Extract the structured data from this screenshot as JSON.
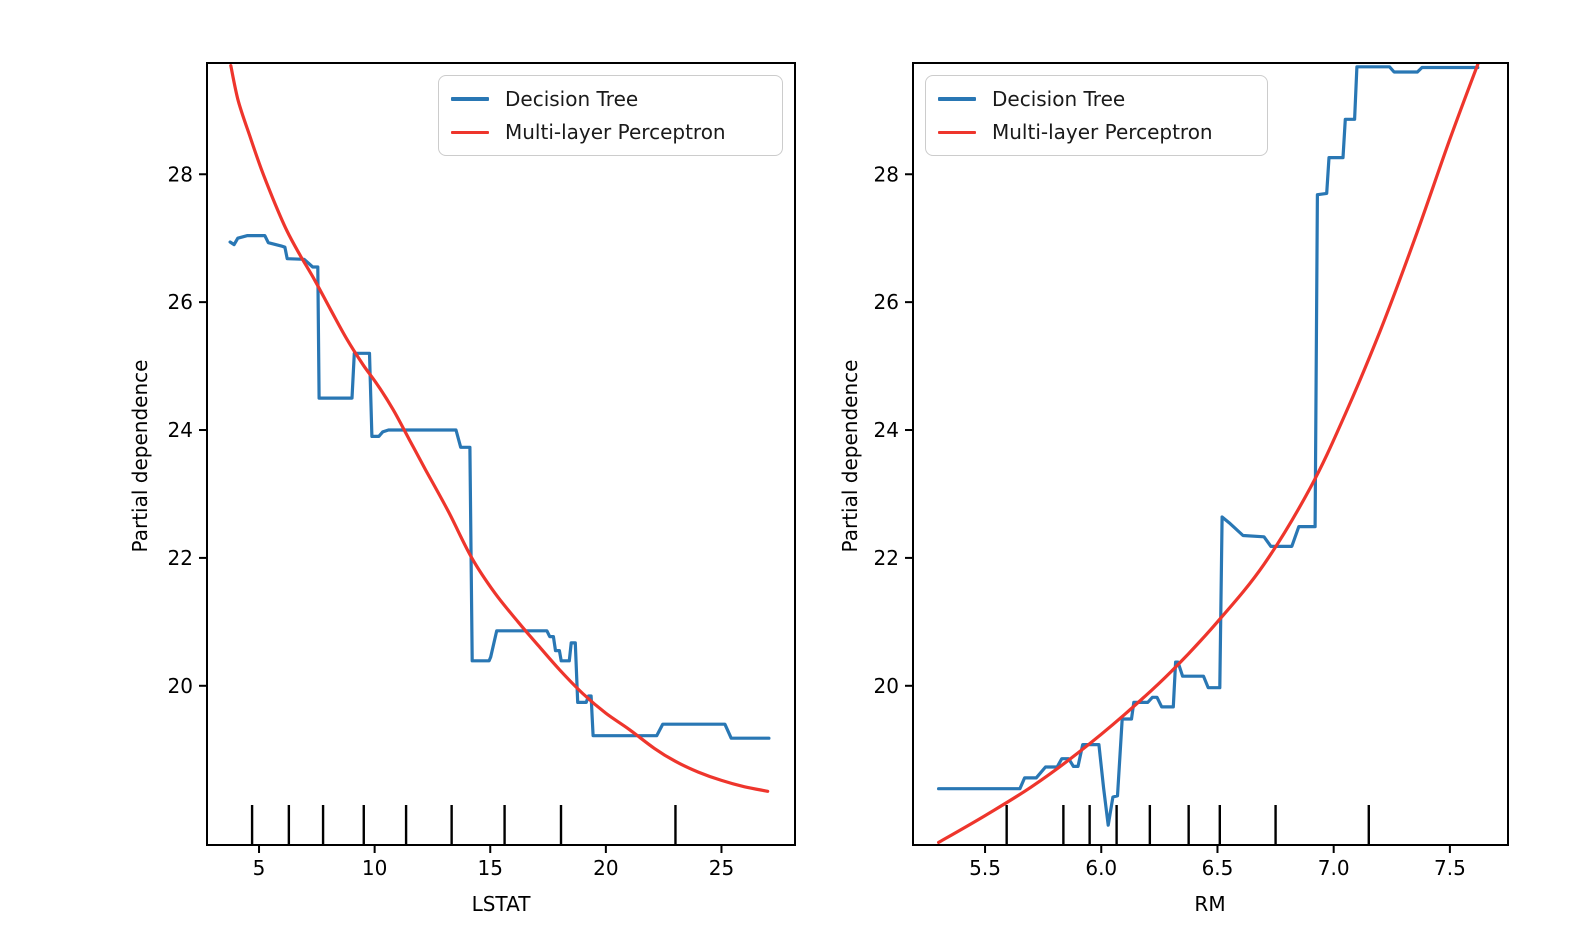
{
  "figure": {
    "background": "#ffffff",
    "spine_color": "#000000",
    "rug_color": "#000000"
  },
  "chart_data": [
    {
      "type": "line",
      "xlabel": "LSTAT",
      "ylabel": "Partial dependence",
      "xlim": [
        2.75,
        28.18
      ],
      "ylim": [
        17.51,
        29.74
      ],
      "grid": false,
      "legend_position": "upper right",
      "xticks": {
        "values": [
          5,
          10,
          15,
          20,
          25
        ],
        "labels": [
          "5",
          "10",
          "15",
          "20",
          "25"
        ]
      },
      "yticks": {
        "values": [
          20,
          22,
          24,
          26,
          28
        ],
        "labels": [
          "20",
          "22",
          "24",
          "26",
          "28"
        ]
      },
      "rug_x": [
        4.7,
        6.29,
        7.77,
        9.53,
        11.36,
        13.33,
        15.62,
        18.06,
        23.01
      ],
      "series": [
        {
          "name": "Decision Tree",
          "color": "#2977b4",
          "smooth": false,
          "points": [
            [
              3.75,
              26.94
            ],
            [
              3.92,
              26.9
            ],
            [
              4.08,
              27.0
            ],
            [
              4.5,
              27.04
            ],
            [
              5.25,
              27.04
            ],
            [
              5.4,
              26.93
            ],
            [
              5.95,
              26.88
            ],
            [
              6.12,
              26.86
            ],
            [
              6.22,
              26.68
            ],
            [
              6.95,
              26.67
            ],
            [
              7.32,
              26.55
            ],
            [
              7.54,
              26.55
            ],
            [
              7.6,
              24.5
            ],
            [
              9.02,
              24.5
            ],
            [
              9.12,
              25.2
            ],
            [
              9.78,
              25.2
            ],
            [
              9.88,
              23.9
            ],
            [
              10.18,
              23.9
            ],
            [
              10.35,
              23.97
            ],
            [
              10.6,
              24.0
            ],
            [
              13.52,
              24.0
            ],
            [
              13.72,
              23.73
            ],
            [
              14.12,
              23.73
            ],
            [
              14.22,
              20.39
            ],
            [
              14.95,
              20.39
            ],
            [
              15.02,
              20.45
            ],
            [
              15.28,
              20.86
            ],
            [
              17.45,
              20.86
            ],
            [
              17.57,
              20.77
            ],
            [
              17.73,
              20.77
            ],
            [
              17.82,
              20.55
            ],
            [
              17.99,
              20.55
            ],
            [
              18.07,
              20.39
            ],
            [
              18.42,
              20.39
            ],
            [
              18.5,
              20.67
            ],
            [
              18.68,
              20.67
            ],
            [
              18.78,
              19.74
            ],
            [
              19.15,
              19.74
            ],
            [
              19.25,
              19.84
            ],
            [
              19.36,
              19.84
            ],
            [
              19.45,
              19.22
            ],
            [
              22.2,
              19.22
            ],
            [
              22.46,
              19.4
            ],
            [
              25.15,
              19.4
            ],
            [
              25.42,
              19.18
            ],
            [
              27.05,
              19.18
            ]
          ]
        },
        {
          "name": "Multi-layer Perceptron",
          "color": "#ee352c",
          "smooth": true,
          "points": [
            [
              3.78,
              29.7
            ],
            [
              4.1,
              29.15
            ],
            [
              4.6,
              28.6
            ],
            [
              5.1,
              28.08
            ],
            [
              5.6,
              27.62
            ],
            [
              6.2,
              27.12
            ],
            [
              6.8,
              26.72
            ],
            [
              7.4,
              26.35
            ],
            [
              8.1,
              25.88
            ],
            [
              8.8,
              25.42
            ],
            [
              9.5,
              25.02
            ],
            [
              10.1,
              24.72
            ],
            [
              10.8,
              24.32
            ],
            [
              11.5,
              23.85
            ],
            [
              12.2,
              23.38
            ],
            [
              13.2,
              22.72
            ],
            [
              14.2,
              22.0
            ],
            [
              15.2,
              21.45
            ],
            [
              16.2,
              21.0
            ],
            [
              17.1,
              20.62
            ],
            [
              18.0,
              20.25
            ],
            [
              19.0,
              19.88
            ],
            [
              20.0,
              19.57
            ],
            [
              21.0,
              19.32
            ],
            [
              22.1,
              19.02
            ],
            [
              23.0,
              18.82
            ],
            [
              24.0,
              18.65
            ],
            [
              25.0,
              18.52
            ],
            [
              26.0,
              18.42
            ],
            [
              27.0,
              18.35
            ]
          ]
        }
      ]
    },
    {
      "type": "line",
      "xlabel": "RM",
      "ylabel": "Partial dependence",
      "xlim": [
        5.19,
        7.75
      ],
      "ylim": [
        17.51,
        29.74
      ],
      "grid": false,
      "legend_position": "upper left",
      "xticks": {
        "values": [
          5.5,
          6.0,
          6.5,
          7.0,
          7.5
        ],
        "labels": [
          "5.5",
          "6.0",
          "6.5",
          "7.0",
          "7.5"
        ]
      },
      "yticks": {
        "values": [
          20,
          22,
          24,
          26,
          28
        ],
        "labels": [
          "20",
          "22",
          "24",
          "26",
          "28"
        ]
      },
      "rug_x": [
        5.593,
        5.837,
        5.95,
        6.066,
        6.209,
        6.376,
        6.51,
        6.75,
        7.151
      ],
      "series": [
        {
          "name": "Decision Tree",
          "color": "#2977b4",
          "smooth": false,
          "points": [
            [
              5.3,
              18.39
            ],
            [
              5.65,
              18.39
            ],
            [
              5.67,
              18.56
            ],
            [
              5.72,
              18.56
            ],
            [
              5.76,
              18.73
            ],
            [
              5.81,
              18.73
            ],
            [
              5.83,
              18.86
            ],
            [
              5.86,
              18.86
            ],
            [
              5.88,
              18.74
            ],
            [
              5.9,
              18.74
            ],
            [
              5.92,
              19.08
            ],
            [
              5.99,
              19.08
            ],
            [
              6.01,
              18.4
            ],
            [
              6.03,
              17.82
            ],
            [
              6.05,
              18.26
            ],
            [
              6.07,
              18.28
            ],
            [
              6.09,
              19.48
            ],
            [
              6.13,
              19.48
            ],
            [
              6.14,
              19.74
            ],
            [
              6.2,
              19.74
            ],
            [
              6.22,
              19.82
            ],
            [
              6.24,
              19.82
            ],
            [
              6.26,
              19.67
            ],
            [
              6.31,
              19.67
            ],
            [
              6.32,
              20.37
            ],
            [
              6.33,
              20.37
            ],
            [
              6.35,
              20.15
            ],
            [
              6.44,
              20.15
            ],
            [
              6.46,
              19.97
            ],
            [
              6.51,
              19.97
            ],
            [
              6.52,
              22.64
            ],
            [
              6.55,
              22.55
            ],
            [
              6.61,
              22.35
            ],
            [
              6.7,
              22.33
            ],
            [
              6.73,
              22.18
            ],
            [
              6.82,
              22.18
            ],
            [
              6.85,
              22.49
            ],
            [
              6.92,
              22.49
            ],
            [
              6.93,
              27.68
            ],
            [
              6.97,
              27.7
            ],
            [
              6.98,
              28.26
            ],
            [
              7.04,
              28.26
            ],
            [
              7.05,
              28.86
            ],
            [
              7.09,
              28.86
            ],
            [
              7.1,
              29.68
            ],
            [
              7.24,
              29.68
            ],
            [
              7.26,
              29.6
            ],
            [
              7.36,
              29.6
            ],
            [
              7.38,
              29.67
            ],
            [
              7.62,
              29.67
            ]
          ]
        },
        {
          "name": "Multi-layer Perceptron",
          "color": "#ee352c",
          "smooth": true,
          "points": [
            [
              5.3,
              17.55
            ],
            [
              5.5,
              17.97
            ],
            [
              5.7,
              18.42
            ],
            [
              5.9,
              18.95
            ],
            [
              6.1,
              19.55
            ],
            [
              6.3,
              20.22
            ],
            [
              6.5,
              21.0
            ],
            [
              6.7,
              21.9
            ],
            [
              6.9,
              23.1
            ],
            [
              7.05,
              24.25
            ],
            [
              7.2,
              25.55
            ],
            [
              7.35,
              27.0
            ],
            [
              7.5,
              28.55
            ],
            [
              7.62,
              29.72
            ]
          ]
        }
      ]
    }
  ]
}
